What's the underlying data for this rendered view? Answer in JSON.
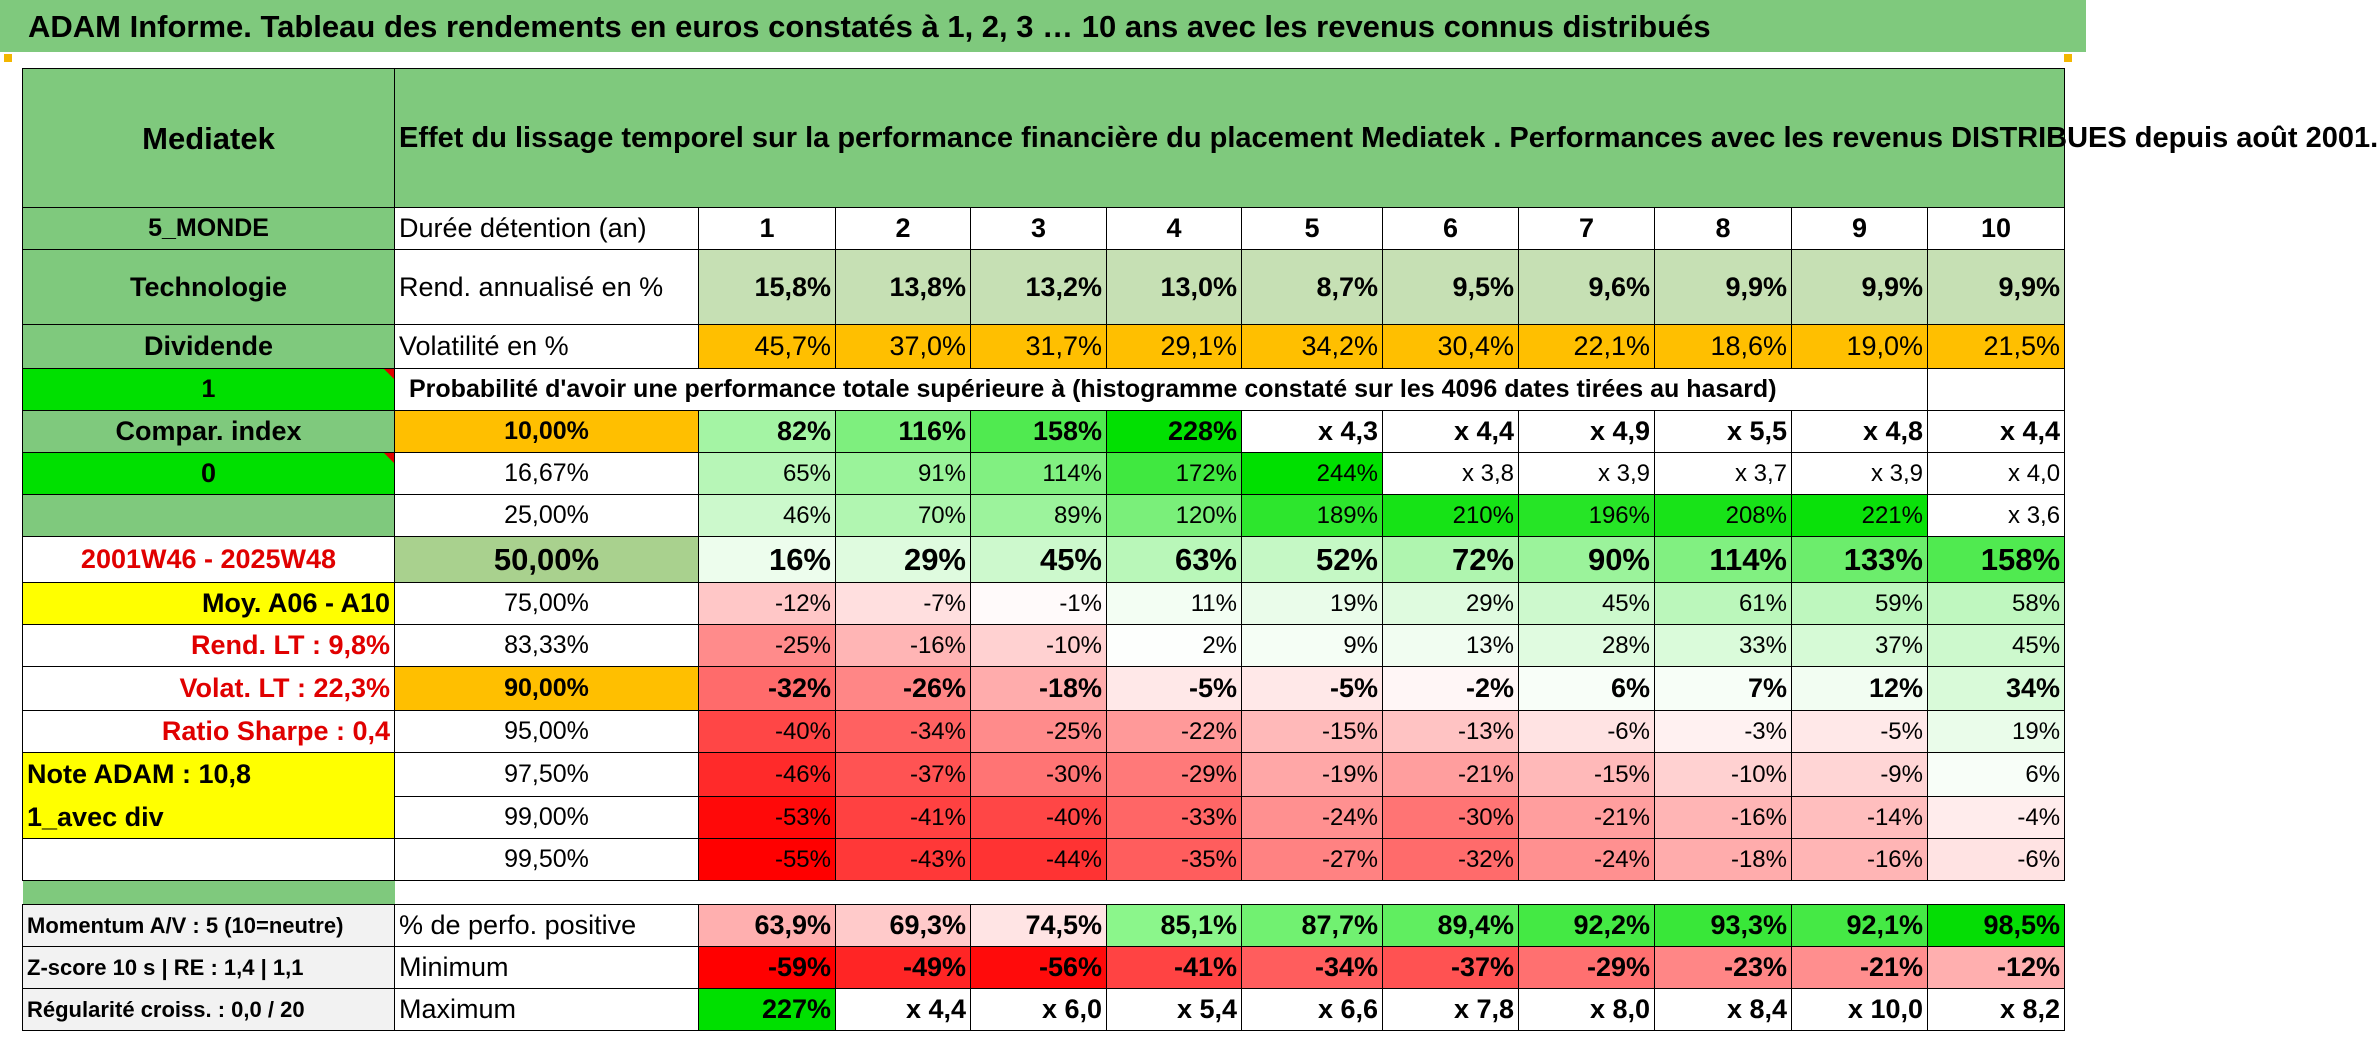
{
  "title": "ADAM Informe. Tableau des rendements en euros constatés à 1, 2, 3 … 10 ans avec les revenus connus distribués",
  "header": {
    "fund": "Mediatek",
    "description": "Effet du lissage temporel sur la performance financière du placement Mediatek . Performances avec les revenus DISTRIBUES depuis août 2001."
  },
  "left": {
    "region": "5_MONDE",
    "sector": "Technologie",
    "income": "Dividende",
    "flag1": "1",
    "compar": "Compar. index",
    "flag0": "0",
    "period": "2001W46 - 2025W48",
    "moy": "Moy. A06 - A10",
    "rend_lt": "Rend. LT :   9,8%",
    "volat_lt": "Volat. LT :   22,3%",
    "sharpe": "Ratio Sharpe :    0,4",
    "note": "Note ADAM : 10,8",
    "variant": "1_avec div"
  },
  "stats_labels": {
    "duration": "Durée détention (an)",
    "rend": "Rend. annualisé en %",
    "volat": "Volatilité en %",
    "prob": "Probabilité d'avoir une performance totale supérieure à (histogramme constaté sur les 4096 dates tirées au hasard)"
  },
  "years": [
    "1",
    "2",
    "3",
    "4",
    "5",
    "6",
    "7",
    "8",
    "9",
    "10"
  ],
  "rend": [
    "15,8%",
    "13,8%",
    "13,2%",
    "13,0%",
    "8,7%",
    "9,5%",
    "9,6%",
    "9,9%",
    "9,9%",
    "9,9%"
  ],
  "volat": [
    "45,7%",
    "37,0%",
    "31,7%",
    "29,1%",
    "34,2%",
    "30,4%",
    "22,1%",
    "18,6%",
    "19,0%",
    "21,5%"
  ],
  "prob_rows": [
    {
      "pct": "10,00%",
      "vals": [
        "82%",
        "116%",
        "158%",
        "228%",
        "x 4,3",
        "x 4,4",
        "x 4,9",
        "x 5,5",
        "x 4,8",
        "x 4,4"
      ]
    },
    {
      "pct": "16,67%",
      "vals": [
        "65%",
        "91%",
        "114%",
        "172%",
        "244%",
        "x 3,8",
        "x 3,9",
        "x 3,7",
        "x 3,9",
        "x 4,0"
      ]
    },
    {
      "pct": "25,00%",
      "vals": [
        "46%",
        "70%",
        "89%",
        "120%",
        "189%",
        "210%",
        "196%",
        "208%",
        "221%",
        "x 3,6"
      ]
    },
    {
      "pct": "50,00%",
      "vals": [
        "16%",
        "29%",
        "45%",
        "63%",
        "52%",
        "72%",
        "90%",
        "114%",
        "133%",
        "158%"
      ]
    },
    {
      "pct": "75,00%",
      "vals": [
        "-12%",
        "-7%",
        "-1%",
        "11%",
        "19%",
        "29%",
        "45%",
        "61%",
        "59%",
        "58%"
      ]
    },
    {
      "pct": "83,33%",
      "vals": [
        "-25%",
        "-16%",
        "-10%",
        "2%",
        "9%",
        "13%",
        "28%",
        "33%",
        "37%",
        "45%"
      ]
    },
    {
      "pct": "90,00%",
      "vals": [
        "-32%",
        "-26%",
        "-18%",
        "-5%",
        "-5%",
        "-2%",
        "6%",
        "7%",
        "12%",
        "34%"
      ]
    },
    {
      "pct": "95,00%",
      "vals": [
        "-40%",
        "-34%",
        "-25%",
        "-22%",
        "-15%",
        "-13%",
        "-6%",
        "-3%",
        "-5%",
        "19%"
      ]
    },
    {
      "pct": "97,50%",
      "vals": [
        "-46%",
        "-37%",
        "-30%",
        "-29%",
        "-19%",
        "-21%",
        "-15%",
        "-10%",
        "-9%",
        "6%"
      ]
    },
    {
      "pct": "99,00%",
      "vals": [
        "-53%",
        "-41%",
        "-40%",
        "-33%",
        "-24%",
        "-30%",
        "-21%",
        "-16%",
        "-14%",
        "-4%"
      ]
    },
    {
      "pct": "99,50%",
      "vals": [
        "-55%",
        "-43%",
        "-44%",
        "-35%",
        "-27%",
        "-32%",
        "-24%",
        "-18%",
        "-16%",
        "-6%"
      ]
    }
  ],
  "bottom": {
    "momentum": "Momentum A/V : 5 (10=neutre)",
    "zscore": "Z-score 10 s | RE : 1,4 | 1,1",
    "regul": "Régularité croiss. : 0,0 / 20",
    "pos_label": "% de perfo. positive",
    "min_label": "Minimum",
    "max_label": "Maximum",
    "pos": [
      "63,9%",
      "69,3%",
      "74,5%",
      "85,1%",
      "87,7%",
      "89,4%",
      "92,2%",
      "93,3%",
      "92,1%",
      "98,5%"
    ],
    "min": [
      "-59%",
      "-49%",
      "-56%",
      "-41%",
      "-34%",
      "-37%",
      "-29%",
      "-23%",
      "-21%",
      "-12%"
    ],
    "max": [
      "227%",
      "x 4,4",
      "x 6,0",
      "x 5,4",
      "x 6,6",
      "x 7,8",
      "x 8,0",
      "x 8,4",
      "x 10,0",
      "x 8,2"
    ]
  },
  "colors": {
    "header_green": "#7fc97d",
    "bright_green": "#00e000",
    "yellow": "#ffff00",
    "orange": "#ffbf00",
    "red_text": "#e00000"
  }
}
